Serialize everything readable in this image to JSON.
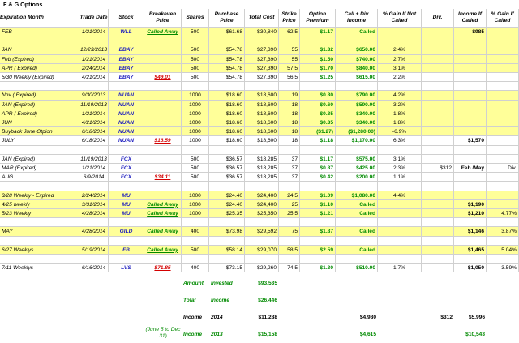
{
  "title": "F & G Options",
  "headers": [
    "Expiration Month",
    "Trade Date",
    "Stock",
    "Breakeven Price",
    "Shares",
    "Purchase Price",
    "Total Cost",
    "Strike Price",
    "Option Premium",
    "Call + Div Income",
    "% Gain If Not Called",
    "Div.",
    "Income If Called",
    "% Gain If Called"
  ],
  "rows": [
    {
      "cells": [
        "FEB",
        "1/21/2014",
        "WLL",
        "Called Away",
        "500",
        "$61.68",
        "$30,840",
        "62.5",
        "$1.17",
        "Called",
        "",
        "",
        "$985",
        ""
      ],
      "yellow": true
    },
    {
      "cells": [
        "",
        "",
        "",
        "",
        "",
        "",
        "",
        "",
        "",
        "",
        "",
        "",
        "",
        ""
      ],
      "yellow": true
    },
    {
      "cells": [
        "JAN",
        "12/23/2013",
        "EBAY",
        "",
        "500",
        "$54.78",
        "$27,390",
        "55",
        "$1.32",
        "$650.00",
        "2.4%",
        "",
        "",
        ""
      ],
      "yellow": true
    },
    {
      "cells": [
        "Feb (Expired)",
        "1/21/2014",
        "EBAY",
        "",
        "500",
        "$54.78",
        "$27,390",
        "55",
        "$1.50",
        "$740.00",
        "2.7%",
        "",
        "",
        ""
      ],
      "yellow": true
    },
    {
      "cells": [
        "APR ( Expired)",
        "2/24/2014",
        "EBAY",
        "",
        "500",
        "$54.78",
        "$27,390",
        "57.5",
        "$1.70",
        "$840.00",
        "3.1%",
        "",
        "",
        ""
      ],
      "yellow": true
    },
    {
      "cells": [
        "5/30 Weekly (Expired)",
        "4/21/2014",
        "EBAY",
        "$49.01",
        "500",
        "$54.78",
        "$27,390",
        "56.5",
        "$1.25",
        "$615.00",
        "2.2%",
        "",
        "",
        ""
      ],
      "yellow": false
    },
    {
      "cells": [
        "",
        "",
        "",
        "",
        "",
        "",
        "",
        "",
        "",
        "",
        "",
        "",
        "",
        ""
      ],
      "yellow": false
    },
    {
      "cells": [
        "Nov ( Expired)",
        "9/30/2013",
        "NUAN",
        "",
        "1000",
        "$18.60",
        "$18,600",
        "19",
        "$0.80",
        "$790.00",
        "4.2%",
        "",
        "",
        ""
      ],
      "yellow": true
    },
    {
      "cells": [
        "JAN (Expired)",
        "11/19/2013",
        "NUAN",
        "",
        "1000",
        "$18.60",
        "$18,600",
        "18",
        "$0.60",
        "$590.00",
        "3.2%",
        "",
        "",
        ""
      ],
      "yellow": true
    },
    {
      "cells": [
        "APR ( Expired)",
        "1/21/2014",
        "NUAN",
        "",
        "1000",
        "$18.60",
        "$18,600",
        "18",
        "$0.35",
        "$340.00",
        "1.8%",
        "",
        "",
        ""
      ],
      "yellow": true
    },
    {
      "cells": [
        "JUN",
        "4/21/2014",
        "NUAN",
        "",
        "1000",
        "$18.60",
        "$18,600",
        "18",
        "$0.35",
        "$340.00",
        "1.8%",
        "",
        "",
        ""
      ],
      "yellow": true
    },
    {
      "cells": [
        "Buyback June Otpion",
        "6/18/2014",
        "NUAN",
        "",
        "1000",
        "$18.60",
        "$18,600",
        "18",
        "($1.27)",
        "($1,280.00)",
        "-6.9%",
        "",
        "",
        ""
      ],
      "yellow": true
    },
    {
      "cells": [
        "JULY",
        "6/18/2014",
        "NUAN",
        "$16.59",
        "1000",
        "$18.60",
        "$18,600",
        "18",
        "$1.18",
        "$1,170.00",
        "6.3%",
        "",
        "$1,570",
        ""
      ],
      "yellow": false
    },
    {
      "cells": [
        "",
        "",
        "",
        "",
        "",
        "",
        "",
        "",
        "",
        "",
        "",
        "",
        "",
        ""
      ],
      "yellow": false
    },
    {
      "cells": [
        "JAN (Expired)",
        "11/19/2013",
        "FCX",
        "",
        "500",
        "$36.57",
        "$18,285",
        "37",
        "$1.17",
        "$575.00",
        "3.1%",
        "",
        "",
        ""
      ],
      "yellow": false
    },
    {
      "cells": [
        "MAR (Expired)",
        "1/21/2014",
        "FCX",
        "",
        "500",
        "$36.57",
        "$18,285",
        "37",
        "$0.87",
        "$425.00",
        "2.3%",
        "$312",
        "Feb /May",
        "Div."
      ],
      "yellow": false
    },
    {
      "cells": [
        "AUG",
        "6/9/2014",
        "FCX",
        "$34.11",
        "500",
        "$36.57",
        "$18,285",
        "37",
        "$0.42",
        "$200.00",
        "1.1%",
        "",
        "",
        ""
      ],
      "yellow": false
    },
    {
      "cells": [
        "",
        "",
        "",
        "",
        "",
        "",
        "",
        "",
        "",
        "",
        "",
        "",
        "",
        ""
      ],
      "yellow": false
    },
    {
      "cells": [
        "3/28 Weekly - Expired",
        "2/24/2014",
        "MU",
        "",
        "1000",
        "$24.40",
        "$24,400",
        "24.5",
        "$1.09",
        "$1,080.00",
        "4.4%",
        "",
        "",
        ""
      ],
      "yellow": true
    },
    {
      "cells": [
        "4/25 weekly",
        "3/31/2014",
        "MU",
        "Called Away",
        "1000",
        "$24.40",
        "$24,400",
        "25",
        "$1.10",
        "Called",
        "",
        "",
        "$1,190",
        ""
      ],
      "yellow": true
    },
    {
      "cells": [
        "5/23 Weekly",
        "4/28/2014",
        "MU",
        "Called Away",
        "1000",
        "$25.35",
        "$25,350",
        "25.5",
        "$1.21",
        "Called",
        "",
        "",
        "$1,210",
        "4.77%"
      ],
      "yellow": true
    },
    {
      "cells": [
        "",
        "",
        "",
        "",
        "",
        "",
        "",
        "",
        "",
        "",
        "",
        "",
        "",
        ""
      ],
      "yellow": false
    },
    {
      "cells": [
        "MAY",
        "4/28/2014",
        "GILD",
        "Called Away",
        "400",
        "$73.98",
        "$29,592",
        "75",
        "$1.87",
        "Called",
        "",
        "",
        "$1,146",
        "3.87%"
      ],
      "yellow": true
    },
    {
      "cells": [
        "",
        "",
        "",
        "",
        "",
        "",
        "",
        "",
        "",
        "",
        "",
        "",
        "",
        ""
      ],
      "yellow": false
    },
    {
      "cells": [
        "6/27 Weeklys",
        "5/19/2014",
        "FB",
        "Called Away",
        "500",
        "$58.14",
        "$29,070",
        "58.5",
        "$2.59",
        "Called",
        "",
        "",
        "$1,465",
        "5.04%"
      ],
      "yellow": true
    },
    {
      "cells": [
        "",
        "",
        "",
        "",
        "",
        "",
        "",
        "",
        "",
        "",
        "",
        "",
        "",
        ""
      ],
      "yellow": false
    },
    {
      "cells": [
        "7/11 Weeklys",
        "6/16/2014",
        "LVS",
        "$71.85",
        "400",
        "$73.15",
        "$29,260",
        "74.5",
        "$1.30",
        "$510.00",
        "1.7%",
        "",
        "$1,050",
        "3.59%"
      ],
      "yellow": false
    }
  ],
  "summary": {
    "invested": {
      "label1": "Amount",
      "label2": "Invested",
      "value": "$93,535"
    },
    "total_income": {
      "label1": "Total",
      "label2": "Income",
      "value": "$26,446"
    },
    "income_2014": {
      "label1": "Income",
      "label2": "2014",
      "value": "$11,288",
      "calls": "$4,980",
      "div": "$312",
      "if_called": "$5,996"
    },
    "income_2013": {
      "note": "(June 5 to Dec 31)",
      "label1": "Income",
      "label2": "2013",
      "value": "$15,158",
      "calls": "$4,615",
      "if_called": "$10,543"
    }
  }
}
